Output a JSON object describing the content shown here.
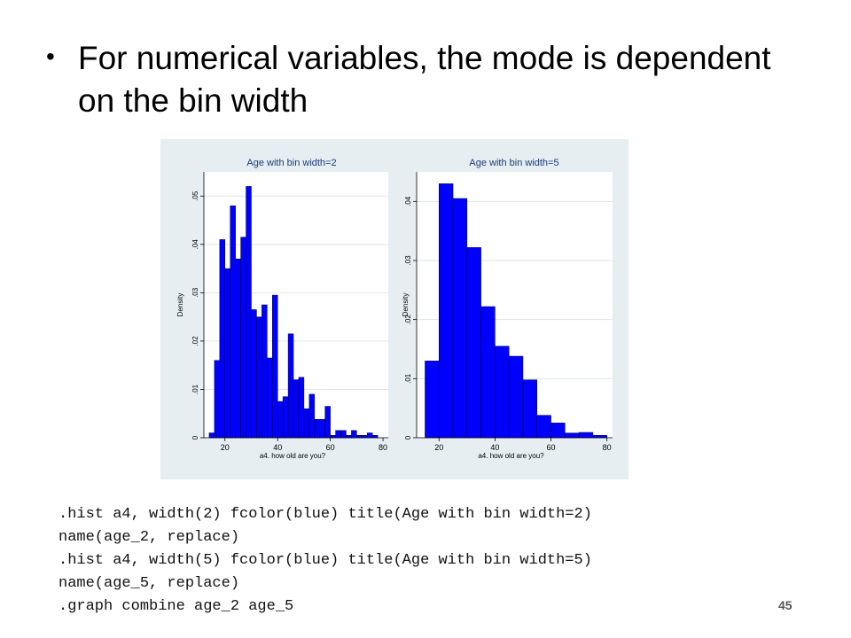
{
  "slide": {
    "bullet_text": "For numerical variables, the mode is dependent on the bin width",
    "page_number": "45"
  },
  "code_lines": [
    ".hist a4, width(2) fcolor(blue) title(Age with bin width=2)",
    "name(age_2, replace)",
    ".hist a4, width(5) fcolor(blue) title(Age with bin width=5)",
    "name(age_5, replace)",
    ".graph combine age_2 age_5"
  ],
  "colors": {
    "bar_fill": "#0000ff",
    "bar_stroke": "#000033",
    "graph_bg": "#e6eef2",
    "plot_bg": "#ffffff"
  },
  "chart_data": [
    {
      "type": "bar",
      "title": "Age with bin width=2",
      "xlabel": "a4. how old are you?",
      "ylabel": "Density",
      "bin_width": 2,
      "bin_start": 14,
      "xlim": [
        12,
        82
      ],
      "ylim": [
        0,
        0.055
      ],
      "xticks": [
        20,
        40,
        60,
        80
      ],
      "yticks": [
        0,
        0.01,
        0.02,
        0.03,
        0.04,
        0.05
      ],
      "ytick_labels": [
        "0",
        ".01",
        ".02",
        ".03",
        ".04",
        ".05"
      ],
      "grid": true,
      "values": [
        0.001,
        0.016,
        0.041,
        0.035,
        0.048,
        0.037,
        0.0415,
        0.052,
        0.0265,
        0.025,
        0.0275,
        0.0165,
        0.0295,
        0.0075,
        0.0085,
        0.0215,
        0.012,
        0.0125,
        0.006,
        0.009,
        0.0038,
        0.0038,
        0.0065,
        0.0005,
        0.0015,
        0.0015,
        0.0005,
        0.0015,
        0.0005,
        0.0005,
        0.001,
        0.0005
      ]
    },
    {
      "type": "bar",
      "title": "Age with bin width=5",
      "xlabel": "a4. how old are you?",
      "ylabel": "Density",
      "bin_width": 5,
      "bin_start": 15,
      "xlim": [
        12,
        82
      ],
      "ylim": [
        0,
        0.045
      ],
      "xticks": [
        20,
        40,
        60,
        80
      ],
      "yticks": [
        0,
        0.01,
        0.02,
        0.03,
        0.04
      ],
      "ytick_labels": [
        "0",
        ".01",
        ".02",
        ".03",
        ".04"
      ],
      "grid": true,
      "values": [
        0.013,
        0.043,
        0.0405,
        0.0322,
        0.0222,
        0.0155,
        0.0138,
        0.0098,
        0.0038,
        0.0025,
        0.0008,
        0.0009,
        0.0004
      ]
    }
  ]
}
